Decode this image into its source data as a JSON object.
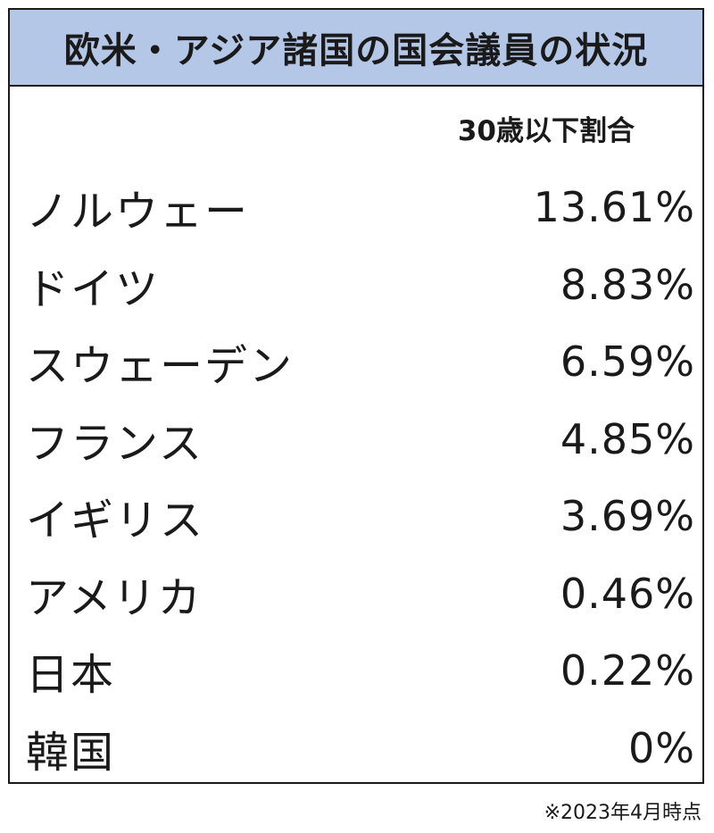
{
  "chart_data": {
    "type": "table",
    "title": "欧米・アジア諸国の国会議員の状況",
    "column_header": "30歳以下割合",
    "rows": [
      {
        "country": "ノルウェー",
        "value": "13.61%",
        "percent": 13.61
      },
      {
        "country": "ドイツ",
        "value": "8.83%",
        "percent": 8.83
      },
      {
        "country": "スウェーデン",
        "value": "6.59%",
        "percent": 6.59
      },
      {
        "country": "フランス",
        "value": "4.85%",
        "percent": 4.85
      },
      {
        "country": "イギリス",
        "value": "3.69%",
        "percent": 3.69
      },
      {
        "country": "アメリカ",
        "value": "0.46%",
        "percent": 0.46
      },
      {
        "country": "日本",
        "value": "0.22%",
        "percent": 0.22
      },
      {
        "country": "韓国",
        "value": "0%",
        "percent": 0
      }
    ],
    "footnote": "※2023年4月時点"
  },
  "colors": {
    "title_background": "#b4c7e7",
    "border": "#1a1a1a",
    "text": "#1a1a1a"
  }
}
